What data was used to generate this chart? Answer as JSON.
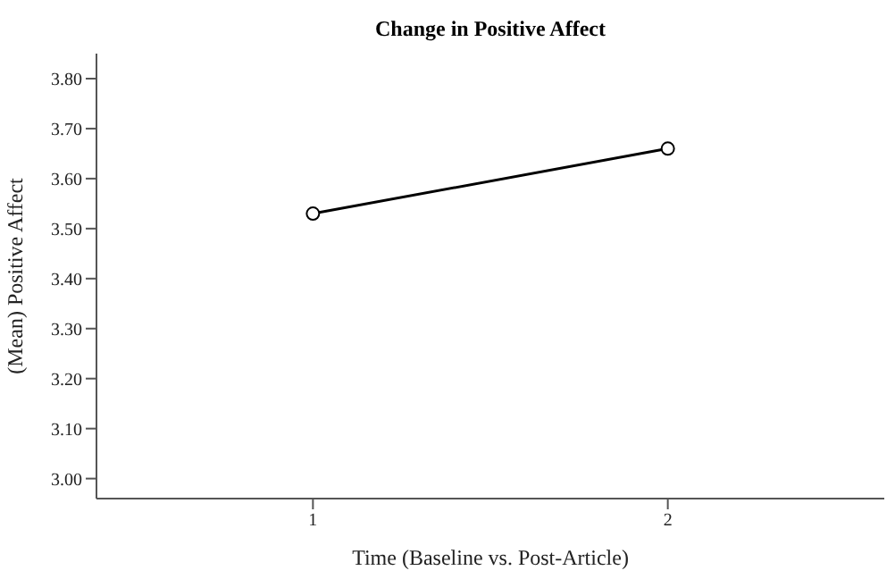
{
  "chart_data": {
    "type": "line",
    "title": "Change in Positive Affect",
    "xlabel": "Time (Baseline vs. Post-Article)",
    "ylabel": "(Mean) Positive Affect",
    "categories": [
      "1",
      "2"
    ],
    "series": [
      {
        "color": "#000000",
        "values": [
          3.53,
          3.66
        ]
      }
    ],
    "ylim": [
      2.96,
      3.85
    ],
    "yticks": [
      {
        "value": 3.0,
        "label": "3.00"
      },
      {
        "value": 3.1,
        "label": "3.10"
      },
      {
        "value": 3.2,
        "label": "3.20"
      },
      {
        "value": 3.3,
        "label": "3.30"
      },
      {
        "value": 3.4,
        "label": "3.40"
      },
      {
        "value": 3.5,
        "label": "3.50"
      },
      {
        "value": 3.6,
        "label": "3.60"
      },
      {
        "value": 3.7,
        "label": "3.70"
      },
      {
        "value": 3.8,
        "label": "3.80"
      }
    ],
    "grid": false,
    "legend": false,
    "marker": "circle",
    "line_style": "solid"
  }
}
